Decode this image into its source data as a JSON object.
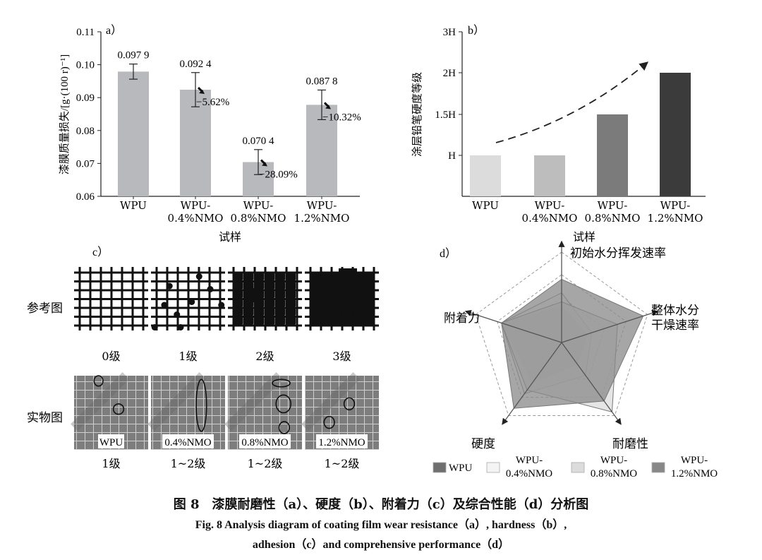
{
  "charts": {
    "a": {
      "panel": "a）",
      "ylabel": "漆膜质量损失/[g·(100 r)⁻¹]",
      "xlabel": "试样",
      "ylim": [
        0.06,
        0.11
      ],
      "yticks": [
        "0.06",
        "0.07",
        "0.08",
        "0.09",
        "0.10",
        "0.11"
      ],
      "categories": [
        "WPU",
        "WPU-\n0.4%NMO",
        "WPU-\n0.8%NMO",
        "WPU-\n1.2%NMO"
      ],
      "values": [
        0.0979,
        0.0924,
        0.0704,
        0.0878
      ],
      "errors": [
        0.0023,
        0.0052,
        0.0038,
        0.0045
      ],
      "value_labels": [
        "0.097 9",
        "0.092 4",
        "0.070 4",
        "0.087 8"
      ],
      "changes": [
        "",
        "−5.62%",
        "−28.09%",
        "−10.32%"
      ],
      "bar_color": "#b8b9bd"
    },
    "b": {
      "panel": "b）",
      "ylabel": "涂层铅笔硬度等级",
      "xlabel": "试样",
      "yticks": [
        "H",
        "1.5H",
        "2H",
        "3H"
      ],
      "ytick_values": [
        1,
        1.5,
        2,
        3
      ],
      "ylim": [
        0,
        3
      ],
      "categories": [
        "WPU",
        "WPU-\n0.4%NMO",
        "WPU-\n0.8%NMO",
        "WPU-\n1.2%NMO"
      ],
      "values": [
        1,
        1,
        1.5,
        2
      ],
      "colors": [
        "#dcdcdc",
        "#bdbdbd",
        "#7b7b7b",
        "#3b3b3b"
      ]
    },
    "d": {
      "panel": "d）",
      "axes": [
        "初始水分挥发速率",
        "整体水分\n干燥速率",
        "耐磨性",
        "硬度",
        "附着力"
      ],
      "series": [
        {
          "name": "WPU",
          "values": [
            0.4,
            0.3,
            0.3,
            0.55,
            0.7
          ],
          "color": "#6f6f6f"
        },
        {
          "name": "WPU-\n0.4%NMO",
          "values": [
            0.55,
            0.35,
            0.45,
            0.7,
            0.7
          ],
          "color": "#f4f4f4"
        },
        {
          "name": "WPU-\n0.8%NMO",
          "values": [
            0.45,
            0.65,
            0.95,
            0.65,
            0.7
          ],
          "color": "#dcdcdc"
        },
        {
          "name": "WPU-\n1.2%NMO",
          "values": [
            0.7,
            0.95,
            0.8,
            0.9,
            0.7
          ],
          "color": "#888888"
        }
      ]
    }
  },
  "adhesion": {
    "panel": "c）",
    "ref_label": "参考图",
    "real_label": "实物图",
    "grades": [
      "0级",
      "1级",
      "2级",
      "3级"
    ],
    "samples": [
      "WPU",
      "0.4%NMO",
      "0.8%NMO",
      "1.2%NMO"
    ],
    "sample_grades": [
      "1级",
      "1~2级",
      "1~2级",
      "1~2级"
    ]
  },
  "caption": {
    "cn": "图 8　漆膜耐磨性（a）、硬度（b）、附着力（c）及综合性能（d）分析图",
    "en1": "Fig. 8   Analysis diagram of coating film wear resistance（a）, hardness（b）,",
    "en2": "adhesion（c）and comprehensive performance（d）"
  }
}
